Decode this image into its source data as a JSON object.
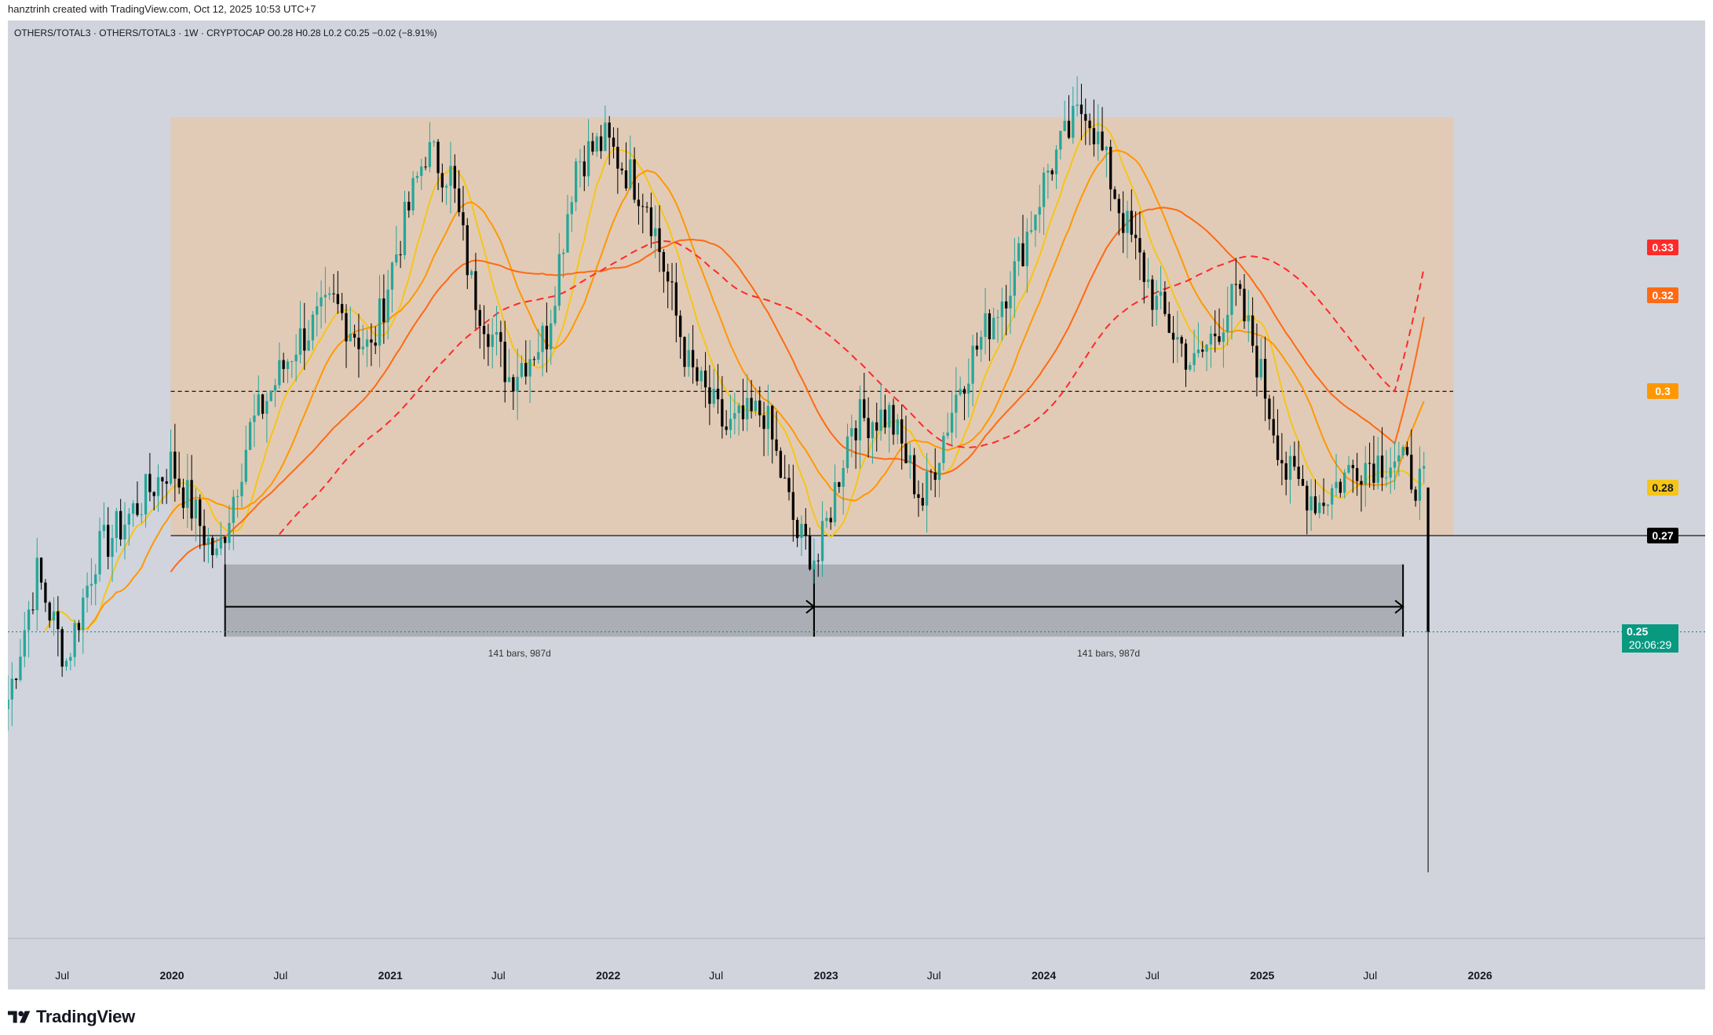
{
  "caption": "hanztrinh created with TradingView.com, Oct 12, 2025 10:53 UTC+7",
  "legend": "OTHERS/TOTAL3 · OTHERS/TOTAL3 · 1W · CRYPTOCAP  O0.28  H0.28  L0.2  C0.25  −0.02 (−8.91%)",
  "brand": {
    "name": "TradingView",
    "logo_icon": "tradingview-logo-icon"
  },
  "colors": {
    "background": "#d1d4dc",
    "up": "#26a69a",
    "down": "#000000",
    "range_box": "#f4c08a",
    "projection_box": "#8c8e96",
    "ma_fast": "#f5c518",
    "ma_mid": "#ff9800",
    "ma_slow": "#ff6a13",
    "ma_long": "#ff2a2a",
    "last_price": "#089981"
  },
  "chart_data": {
    "type": "candlestick",
    "title": "OTHERS/TOTAL3",
    "timeframe": "1W",
    "exchange": "CRYPTOCAP",
    "ohlc_last": {
      "open": 0.28,
      "high": 0.28,
      "low": 0.2,
      "close": 0.25,
      "change": -0.02,
      "change_pct": "−8.91%"
    },
    "x_range": [
      "2019-04-01",
      "2026-06-01"
    ],
    "y_range": [
      0.182,
      0.375
    ],
    "x_tick_labels": [
      "Jul",
      "2020",
      "Jul",
      "2021",
      "Jul",
      "2022",
      "Jul",
      "2023",
      "Jul",
      "2024",
      "Jul",
      "2025",
      "Jul",
      "2026"
    ],
    "major_ticks": [
      "2020",
      "2021",
      "2022",
      "2023",
      "2024",
      "2025",
      "2026"
    ],
    "price_path": [
      [
        "2019-04-01",
        0.236
      ],
      [
        "2019-05-20",
        0.262
      ],
      [
        "2019-07-08",
        0.244
      ],
      [
        "2019-08-26",
        0.266
      ],
      [
        "2019-10-14",
        0.273
      ],
      [
        "2019-12-30",
        0.285
      ],
      [
        "2020-03-16",
        0.265
      ],
      [
        "2020-05-11",
        0.292
      ],
      [
        "2020-07-27",
        0.31
      ],
      [
        "2020-09-28",
        0.318
      ],
      [
        "2020-11-30",
        0.308
      ],
      [
        "2021-01-04",
        0.326
      ],
      [
        "2021-03-01",
        0.35
      ],
      [
        "2021-04-12",
        0.345
      ],
      [
        "2021-05-17",
        0.322
      ],
      [
        "2021-07-19",
        0.303
      ],
      [
        "2021-09-20",
        0.312
      ],
      [
        "2021-11-08",
        0.348
      ],
      [
        "2021-12-27",
        0.352
      ],
      [
        "2022-03-07",
        0.34
      ],
      [
        "2022-05-16",
        0.305
      ],
      [
        "2022-07-18",
        0.292
      ],
      [
        "2022-09-19",
        0.296
      ],
      [
        "2022-11-14",
        0.27
      ],
      [
        "2022-12-19",
        0.265
      ],
      [
        "2023-02-13",
        0.294
      ],
      [
        "2023-04-17",
        0.295
      ],
      [
        "2023-06-12",
        0.277
      ],
      [
        "2023-08-14",
        0.302
      ],
      [
        "2023-11-13",
        0.325
      ],
      [
        "2024-01-08",
        0.346
      ],
      [
        "2024-03-11",
        0.36
      ],
      [
        "2024-05-13",
        0.336
      ],
      [
        "2024-07-08",
        0.318
      ],
      [
        "2024-09-09",
        0.305
      ],
      [
        "2024-11-18",
        0.32
      ],
      [
        "2024-12-16",
        0.31
      ],
      [
        "2025-02-10",
        0.283
      ],
      [
        "2025-04-07",
        0.277
      ],
      [
        "2025-06-09",
        0.285
      ],
      [
        "2025-08-11",
        0.286
      ],
      [
        "2025-09-29",
        0.28
      ],
      [
        "2025-10-06",
        0.25
      ]
    ],
    "moving_averages": [
      {
        "type": "fast",
        "color": "#f5c518",
        "style": "solid",
        "current": 0.28
      },
      {
        "type": "mid",
        "color": "#ff9800",
        "style": "solid",
        "current": 0.3
      },
      {
        "type": "slow",
        "color": "#ff6a13",
        "style": "solid",
        "current": 0.32
      },
      {
        "type": "long",
        "color": "#ff2a2a",
        "style": "dashed",
        "current": 0.33
      }
    ],
    "price_scale_labels": [
      "0.33",
      "0.32",
      "0.3",
      "0.28",
      "0.27",
      "0.25"
    ],
    "last_price": 0.25,
    "countdown": "20:06:29",
    "horizontal_levels": [
      {
        "value": 0.27,
        "label": "0.27",
        "style": "solid"
      },
      {
        "value": 0.3,
        "style": "dashed"
      },
      {
        "value": 0.25,
        "style": "dotted"
      }
    ],
    "range_box": {
      "x_from": "2019-12-30",
      "x_to": "2025-11-17",
      "y_from": 0.27,
      "y_to": 0.357
    },
    "projection": {
      "y_from": 0.249,
      "y_to": 0.264,
      "segments": [
        {
          "x_from": "2020-03-30",
          "x_to": "2022-12-12",
          "label": "141 bars, 987d"
        },
        {
          "x_from": "2022-12-12",
          "x_to": "2025-08-25",
          "label": "141 bars, 987d"
        }
      ]
    }
  }
}
